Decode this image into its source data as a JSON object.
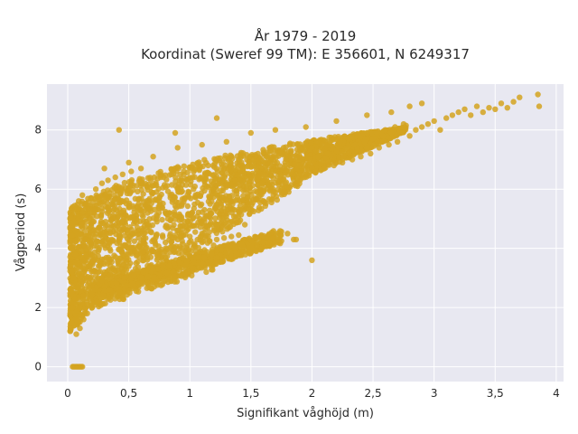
{
  "chart_data": {
    "type": "scatter",
    "title_lines": [
      "År 1979 - 2019",
      "Koordinat (Sweref 99 TM): E 356601, N 6249317"
    ],
    "xlabel": "Signifikant våghöjd (m)",
    "ylabel": "Vågperiod (s)",
    "xlim": [
      -0.17,
      4.06
    ],
    "ylim": [
      -0.5,
      9.55
    ],
    "x_ticks": [
      0,
      0.5,
      1,
      1.5,
      2,
      2.5,
      3,
      3.5,
      4
    ],
    "x_tick_labels": [
      "0",
      "0,5",
      "1",
      "1,5",
      "2",
      "2,5",
      "3",
      "3,5",
      "4"
    ],
    "y_ticks": [
      0,
      2,
      4,
      6,
      8
    ],
    "y_tick_labels": [
      "0",
      "2",
      "4",
      "6",
      "8"
    ],
    "grid": true,
    "colors": {
      "marker": "#d4a320",
      "plot_bg": "#e8e8f1",
      "grid": "#ffffff"
    },
    "series": [
      {
        "points": [
          [
            0.02,
            1.2
          ],
          [
            0.02,
            1.8
          ],
          [
            0.03,
            2.5
          ],
          [
            0.03,
            3.2
          ],
          [
            0.03,
            4.0
          ],
          [
            0.04,
            4.8
          ],
          [
            0.04,
            5.4
          ],
          [
            0.05,
            1.4
          ],
          [
            0.05,
            2.2
          ],
          [
            0.05,
            3.0
          ],
          [
            0.06,
            3.8
          ],
          [
            0.06,
            4.6
          ],
          [
            0.06,
            5.3
          ],
          [
            0.07,
            1.1
          ],
          [
            0.07,
            1.9
          ],
          [
            0.08,
            2.7
          ],
          [
            0.08,
            3.5
          ],
          [
            0.08,
            4.3
          ],
          [
            0.09,
            5.1
          ],
          [
            0.09,
            5.6
          ],
          [
            0.1,
            1.3
          ],
          [
            0.1,
            2.0
          ],
          [
            0.1,
            2.9
          ],
          [
            0.11,
            3.7
          ],
          [
            0.11,
            4.5
          ],
          [
            0.12,
            5.2
          ],
          [
            0.12,
            5.8
          ],
          [
            0.13,
            1.6
          ],
          [
            0.13,
            2.4
          ],
          [
            0.14,
            3.3
          ],
          [
            0.14,
            4.1
          ],
          [
            0.15,
            4.9
          ],
          [
            0.15,
            5.5
          ],
          [
            0.16,
            1.8
          ],
          [
            0.17,
            2.6
          ],
          [
            0.17,
            3.4
          ],
          [
            0.18,
            4.2
          ],
          [
            0.18,
            5.0
          ],
          [
            0.19,
            5.7
          ],
          [
            0.2,
            2.0
          ],
          [
            0.2,
            2.9
          ],
          [
            0.21,
            3.6
          ],
          [
            0.22,
            4.4
          ],
          [
            0.22,
            5.3
          ],
          [
            0.23,
            6.0
          ],
          [
            0.24,
            2.2
          ],
          [
            0.25,
            3.0
          ],
          [
            0.25,
            3.9
          ],
          [
            0.26,
            4.7
          ],
          [
            0.27,
            5.5
          ],
          [
            0.28,
            6.2
          ],
          [
            0.29,
            2.4
          ],
          [
            0.3,
            3.2
          ],
          [
            0.3,
            4.1
          ],
          [
            0.31,
            4.9
          ],
          [
            0.32,
            5.7
          ],
          [
            0.33,
            6.3
          ],
          [
            0.34,
            2.6
          ],
          [
            0.35,
            3.4
          ],
          [
            0.36,
            4.3
          ],
          [
            0.37,
            5.1
          ],
          [
            0.38,
            5.8
          ],
          [
            0.39,
            6.4
          ],
          [
            0.4,
            2.8
          ],
          [
            0.41,
            3.6
          ],
          [
            0.42,
            4.4
          ],
          [
            0.43,
            5.2
          ],
          [
            0.44,
            6.0
          ],
          [
            0.45,
            6.5
          ],
          [
            0.46,
            3.0
          ],
          [
            0.48,
            3.8
          ],
          [
            0.49,
            4.6
          ],
          [
            0.5,
            5.4
          ],
          [
            0.51,
            6.1
          ],
          [
            0.52,
            6.6
          ],
          [
            0.54,
            3.1
          ],
          [
            0.55,
            3.9
          ],
          [
            0.57,
            4.7
          ],
          [
            0.58,
            5.5
          ],
          [
            0.6,
            6.2
          ],
          [
            0.6,
            6.7
          ],
          [
            0.62,
            3.2
          ],
          [
            0.64,
            4.0
          ],
          [
            0.65,
            4.8
          ],
          [
            0.67,
            5.6
          ],
          [
            0.68,
            6.3
          ],
          [
            0.7,
            3.3
          ],
          [
            0.72,
            4.1
          ],
          [
            0.73,
            4.9
          ],
          [
            0.75,
            5.7
          ],
          [
            0.76,
            6.4
          ],
          [
            0.78,
            3.4
          ],
          [
            0.8,
            4.2
          ],
          [
            0.82,
            5.0
          ],
          [
            0.84,
            5.8
          ],
          [
            0.85,
            6.5
          ],
          [
            0.87,
            3.5
          ],
          [
            0.9,
            4.3
          ],
          [
            0.92,
            5.1
          ],
          [
            0.93,
            5.9
          ],
          [
            0.95,
            6.6
          ],
          [
            0.97,
            3.6
          ],
          [
            1.0,
            4.4
          ],
          [
            1.02,
            5.2
          ],
          [
            1.03,
            6.0
          ],
          [
            1.05,
            6.7
          ],
          [
            1.07,
            3.7
          ],
          [
            1.1,
            4.5
          ],
          [
            1.12,
            5.3
          ],
          [
            1.14,
            6.1
          ],
          [
            1.15,
            6.8
          ],
          [
            1.18,
            3.8
          ],
          [
            1.2,
            4.6
          ],
          [
            1.22,
            5.4
          ],
          [
            1.25,
            6.2
          ],
          [
            1.27,
            6.9
          ],
          [
            1.3,
            3.85
          ],
          [
            1.32,
            4.7
          ],
          [
            1.35,
            5.5
          ],
          [
            1.37,
            6.3
          ],
          [
            1.4,
            7.0
          ],
          [
            1.42,
            3.9
          ],
          [
            1.45,
            4.8
          ],
          [
            1.47,
            5.7
          ],
          [
            1.5,
            6.4
          ],
          [
            1.52,
            7.0
          ],
          [
            1.55,
            4.1
          ],
          [
            1.58,
            5.9
          ],
          [
            1.6,
            6.5
          ],
          [
            1.63,
            7.1
          ],
          [
            1.65,
            4.2
          ],
          [
            1.68,
            6.0
          ],
          [
            1.7,
            6.6
          ],
          [
            1.73,
            7.2
          ],
          [
            1.75,
            4.25
          ],
          [
            1.78,
            6.2
          ],
          [
            1.8,
            6.7
          ],
          [
            1.83,
            7.3
          ],
          [
            1.85,
            4.3
          ],
          [
            1.88,
            6.3
          ],
          [
            1.9,
            6.8
          ],
          [
            1.93,
            7.3
          ],
          [
            1.95,
            6.5
          ],
          [
            1.98,
            7.0
          ],
          [
            2.0,
            7.4
          ],
          [
            2.03,
            6.6
          ],
          [
            2.05,
            7.1
          ],
          [
            2.08,
            7.5
          ],
          [
            2.1,
            6.7
          ],
          [
            2.13,
            7.2
          ],
          [
            2.15,
            7.6
          ],
          [
            2.18,
            6.8
          ],
          [
            2.2,
            7.3
          ],
          [
            2.23,
            7.6
          ],
          [
            2.25,
            6.9
          ],
          [
            2.28,
            7.4
          ],
          [
            2.3,
            7.7
          ],
          [
            2.33,
            7.0
          ],
          [
            2.35,
            7.5
          ],
          [
            2.38,
            7.8
          ],
          [
            2.4,
            7.1
          ],
          [
            2.43,
            7.6
          ],
          [
            2.45,
            7.9
          ],
          [
            2.48,
            7.2
          ],
          [
            2.5,
            7.7
          ],
          [
            2.53,
            7.9
          ],
          [
            2.55,
            7.4
          ],
          [
            2.58,
            7.8
          ],
          [
            2.6,
            8.0
          ],
          [
            2.63,
            7.5
          ],
          [
            2.65,
            7.9
          ],
          [
            2.68,
            8.1
          ],
          [
            2.7,
            7.6
          ],
          [
            2.73,
            7.9
          ],
          [
            2.75,
            8.2
          ],
          [
            2.8,
            7.8
          ],
          [
            2.85,
            8.0
          ],
          [
            2.9,
            8.1
          ],
          [
            2.95,
            8.2
          ],
          [
            3.0,
            8.3
          ],
          [
            3.05,
            8.0
          ],
          [
            3.1,
            8.4
          ],
          [
            3.15,
            8.5
          ],
          [
            3.2,
            8.6
          ],
          [
            3.25,
            8.7
          ],
          [
            3.3,
            8.5
          ],
          [
            3.35,
            8.8
          ],
          [
            3.4,
            8.6
          ],
          [
            3.45,
            8.75
          ],
          [
            3.5,
            8.7
          ],
          [
            3.55,
            8.9
          ],
          [
            3.6,
            8.75
          ],
          [
            3.65,
            8.95
          ],
          [
            3.7,
            9.1
          ],
          [
            3.85,
            9.2
          ],
          [
            3.86,
            8.8
          ],
          [
            0.42,
            8.0
          ],
          [
            1.22,
            8.4
          ],
          [
            0.88,
            7.9
          ],
          [
            2.8,
            8.8
          ],
          [
            2.9,
            8.9
          ],
          [
            0.3,
            6.7
          ],
          [
            0.5,
            6.9
          ],
          [
            0.7,
            7.1
          ],
          [
            0.9,
            7.4
          ],
          [
            1.1,
            7.5
          ],
          [
            1.3,
            7.6
          ],
          [
            1.5,
            7.9
          ],
          [
            1.7,
            8.0
          ],
          [
            1.95,
            8.1
          ],
          [
            2.2,
            8.3
          ],
          [
            2.45,
            8.5
          ],
          [
            2.65,
            8.6
          ],
          [
            1.6,
            4.2
          ],
          [
            1.72,
            4.3
          ],
          [
            1.8,
            4.5
          ],
          [
            1.87,
            4.3
          ],
          [
            2.0,
            3.6
          ],
          [
            0.05,
            0.0
          ],
          [
            0.07,
            0.0
          ],
          [
            0.08,
            0.0
          ],
          [
            0.09,
            0.0
          ],
          [
            0.1,
            0.0
          ],
          [
            0.11,
            0.0
          ],
          [
            0.12,
            0.0
          ],
          [
            0.04,
            0.0
          ],
          [
            0.06,
            0.0
          ],
          [
            0.03,
            1.5
          ],
          [
            0.04,
            2.0
          ],
          [
            0.06,
            2.3
          ],
          [
            0.08,
            1.6
          ],
          [
            0.12,
            1.7
          ],
          [
            0.14,
            2.0
          ],
          [
            0.16,
            2.1
          ],
          [
            0.18,
            2.3
          ],
          [
            0.2,
            2.5
          ],
          [
            0.22,
            2.6
          ],
          [
            0.24,
            2.7
          ],
          [
            0.26,
            2.8
          ],
          [
            0.28,
            2.9
          ],
          [
            0.32,
            3.0
          ],
          [
            0.35,
            3.1
          ],
          [
            0.38,
            3.2
          ],
          [
            0.44,
            3.3
          ],
          [
            0.5,
            3.4
          ],
          [
            0.56,
            3.5
          ],
          [
            0.62,
            3.6
          ],
          [
            0.68,
            3.7
          ],
          [
            0.74,
            3.8
          ],
          [
            0.8,
            3.9
          ],
          [
            0.86,
            3.95
          ],
          [
            0.92,
            4.0
          ],
          [
            0.98,
            4.1
          ],
          [
            1.04,
            4.15
          ],
          [
            1.1,
            4.2
          ],
          [
            1.16,
            4.25
          ],
          [
            1.22,
            4.3
          ],
          [
            1.28,
            4.35
          ],
          [
            1.34,
            4.4
          ],
          [
            1.4,
            4.45
          ]
        ]
      }
    ]
  }
}
